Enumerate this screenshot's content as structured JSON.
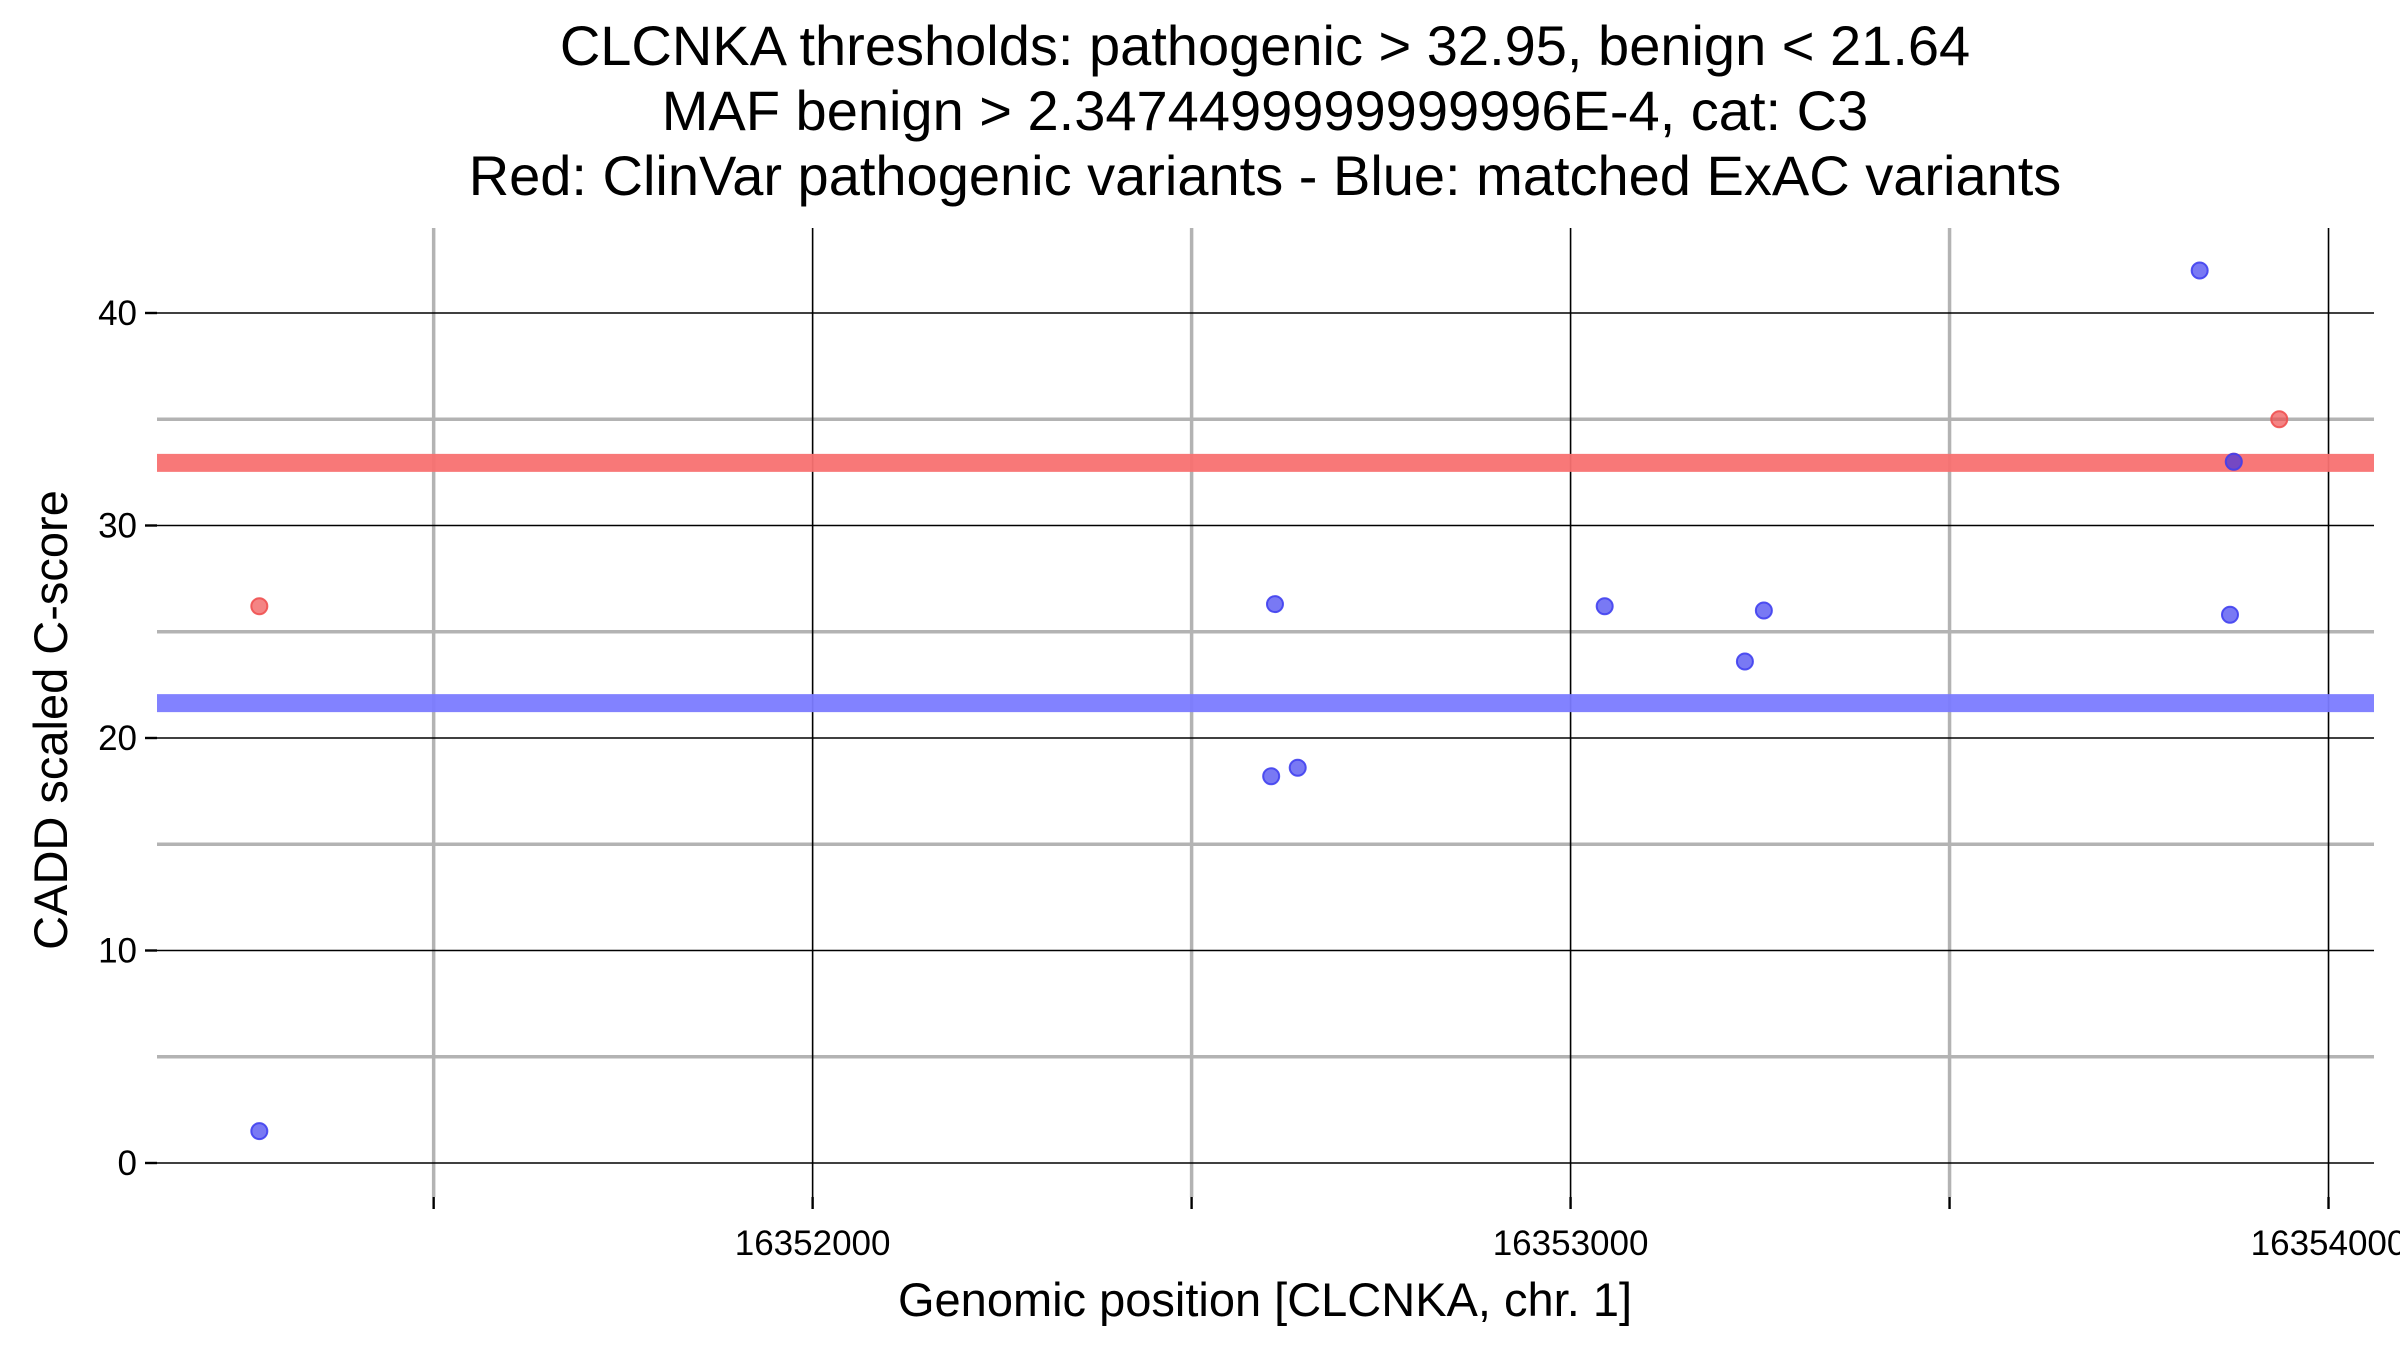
{
  "chart_data": {
    "type": "scatter",
    "title_lines": [
      "CLCNKA thresholds: pathogenic > 32.95, benign < 21.64",
      "MAF benign > 2.3474499999999996E-4, cat: C3",
      "Red: ClinVar pathogenic variants - Blue: matched ExAC variants"
    ],
    "xlabel": "Genomic position [CLCNKA, chr. 1]",
    "ylabel": "CADD scaled C-score",
    "xlim": [
      16351135,
      16354060
    ],
    "ylim": [
      -1.6,
      44
    ],
    "x_ticks": [
      16352000,
      16353000,
      16354000
    ],
    "x_tick_labels": [
      "16352000",
      "16353000",
      "16354000"
    ],
    "x_minor_gridlines": [
      16351500,
      16352500,
      16353500
    ],
    "y_ticks": [
      0,
      10,
      20,
      30,
      40
    ],
    "y_tick_labels": [
      "0",
      "10",
      "20",
      "30",
      "40"
    ],
    "y_minor_gridlines": [
      5,
      15,
      25,
      35
    ],
    "thresholds": [
      {
        "name": "pathogenic",
        "value": 32.95,
        "color": "#f87171"
      },
      {
        "name": "benign",
        "value": 21.64,
        "color": "#7b7bff"
      }
    ],
    "series": [
      {
        "name": "ClinVar pathogenic variants",
        "color": "#f05050",
        "points": [
          {
            "x": 16351270,
            "y": 26.2
          },
          {
            "x": 16353935,
            "y": 35.0
          },
          {
            "x": 16353875,
            "y": 33.0
          }
        ]
      },
      {
        "name": "matched ExAC variants",
        "color": "#4040f0",
        "points": [
          {
            "x": 16351270,
            "y": 1.5
          },
          {
            "x": 16352610,
            "y": 26.3
          },
          {
            "x": 16352605,
            "y": 18.2
          },
          {
            "x": 16352640,
            "y": 18.6
          },
          {
            "x": 16353045,
            "y": 26.2
          },
          {
            "x": 16353230,
            "y": 23.6
          },
          {
            "x": 16353255,
            "y": 26.0
          },
          {
            "x": 16353830,
            "y": 42.0
          },
          {
            "x": 16353870,
            "y": 25.8
          },
          {
            "x": 16353875,
            "y": 33.0
          }
        ]
      }
    ]
  }
}
